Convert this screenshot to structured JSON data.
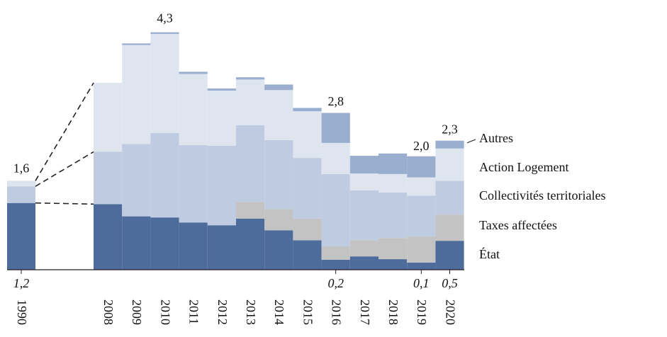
{
  "chart_data": {
    "type": "stacked_step",
    "categories": [
      "1990",
      "2008",
      "2009",
      "2010",
      "2011",
      "2012",
      "2013",
      "2014",
      "2015",
      "2016",
      "2017",
      "2018",
      "2019",
      "2020"
    ],
    "series": [
      {
        "name": "État",
        "color": "#4d6b9b",
        "values": [
          1.2,
          1.18,
          0.96,
          0.94,
          0.85,
          0.8,
          0.92,
          0.71,
          0.53,
          0.18,
          0.24,
          0.19,
          0.13,
          0.52
        ]
      },
      {
        "name": "Taxes affectées",
        "color": "#c3c3c3",
        "values": [
          0,
          0,
          0,
          0,
          0,
          0,
          0.3,
          0.38,
          0.39,
          0.24,
          0.29,
          0.38,
          0.47,
          0.47
        ]
      },
      {
        "name": "Collectivités territoriales",
        "color": "#bfcbe0",
        "values": [
          0.3,
          0.94,
          1.3,
          1.52,
          1.39,
          1.43,
          1.38,
          1.24,
          1.09,
          1.3,
          0.9,
          0.82,
          0.73,
          0.61
        ]
      },
      {
        "name": "Action Logement",
        "color": "#dfe5ef",
        "values": [
          0.1,
          1.24,
          1.78,
          1.78,
          1.28,
          0.99,
          0.82,
          0.9,
          0.84,
          0.56,
          0.3,
          0.33,
          0.33,
          0.58
        ]
      },
      {
        "name": "Autres",
        "color": "#9aafcf",
        "values": [
          0,
          0,
          0.03,
          0.03,
          0.04,
          0.04,
          0.04,
          0.1,
          0.06,
          0.54,
          0.32,
          0.37,
          0.38,
          0.14
        ]
      }
    ],
    "total_labels": [
      {
        "category": "1990",
        "value": 1.6,
        "label": "1,6"
      },
      {
        "category": "2010",
        "value": 4.3,
        "label": "4,3"
      },
      {
        "category": "2016",
        "value": 2.8,
        "label": "2,8"
      },
      {
        "category": "2019",
        "value": 2.0,
        "label": "2,0"
      },
      {
        "category": "2020",
        "value": 2.3,
        "label": "2,3"
      }
    ],
    "etat_labels": [
      {
        "category": "1990",
        "value": 1.2,
        "label": "1,2"
      },
      {
        "category": "2016",
        "value": 0.2,
        "label": "0,2"
      },
      {
        "category": "2019",
        "value": 0.1,
        "label": "0,1"
      },
      {
        "category": "2020",
        "value": 0.5,
        "label": "0,5"
      }
    ],
    "ylim": [
      0,
      4.85
    ]
  }
}
